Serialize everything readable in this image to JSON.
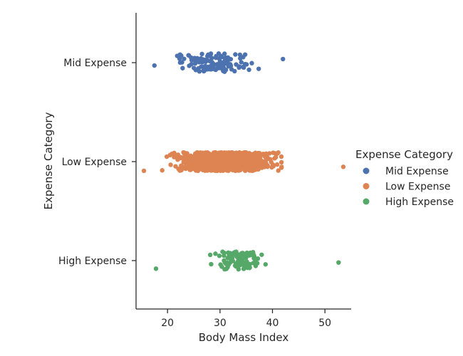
{
  "chart_data": {
    "type": "scatter",
    "subtype": "stripplot",
    "xlabel": "Body Mass Index",
    "ylabel": "Expense Category",
    "xlim": [
      14,
      55
    ],
    "xticks": [
      20,
      30,
      40,
      50
    ],
    "categories": [
      "Mid Expense",
      "Low Expense",
      "High Expense"
    ],
    "grid": false,
    "legend": {
      "title": "Expense Category",
      "placement": "right"
    },
    "series": [
      {
        "name": "Mid Expense",
        "color": "#4c72b0",
        "count": 130,
        "x_range": [
          17.5,
          42.0
        ],
        "dense_range": [
          20,
          38
        ]
      },
      {
        "name": "Low Expense",
        "color": "#dd8452",
        "count": 1100,
        "x_range": [
          15.5,
          53.5
        ],
        "dense_range": [
          19,
          42
        ]
      },
      {
        "name": "High Expense",
        "color": "#55a868",
        "count": 110,
        "x_range": [
          17.8,
          52.6
        ],
        "dense_range": [
          27,
          40
        ]
      }
    ]
  }
}
